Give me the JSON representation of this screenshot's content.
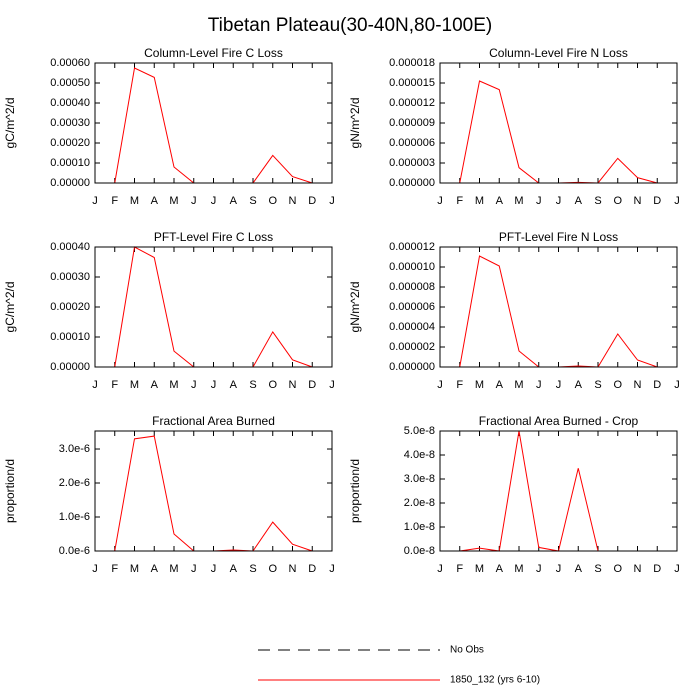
{
  "title": "Tibetan Plateau(30-40N,80-100E)",
  "legend": [
    {
      "name": "No Obs",
      "color": "#000000",
      "dash": true
    },
    {
      "name": "1850_132 (yrs 6-10)",
      "color": "#ff0000",
      "dash": false
    }
  ],
  "chart_data": [
    {
      "type": "line",
      "title": "Column-Level Fire C Loss",
      "y_label": "gC/m^2/d",
      "categories": [
        "J",
        "F",
        "M",
        "A",
        "M",
        "J",
        "J",
        "A",
        "S",
        "O",
        "N",
        "D",
        "J"
      ],
      "series": [
        {
          "color": "#ff0000",
          "values": [
            0,
            0,
            0.000575,
            0.000528,
            8e-05,
            0,
            0,
            0,
            0,
            0.000138,
            3.2e-05,
            0,
            null
          ]
        }
      ],
      "ylim": [
        0,
        0.0006
      ],
      "yticks": [
        {
          "value": 0,
          "label": "0.00000"
        },
        {
          "value": 0.0001,
          "label": "0.00010"
        },
        {
          "value": 0.0002,
          "label": "0.00020"
        },
        {
          "value": 0.0003,
          "label": "0.00030"
        },
        {
          "value": 0.0004,
          "label": "0.00040"
        },
        {
          "value": 0.0005,
          "label": "0.00050"
        },
        {
          "value": 0.0006,
          "label": "0.00060"
        }
      ]
    },
    {
      "type": "line",
      "title": "Column-Level Fire N Loss",
      "y_label": "gN/m^2/d",
      "categories": [
        "J",
        "F",
        "M",
        "A",
        "M",
        "J",
        "J",
        "A",
        "S",
        "O",
        "N",
        "D",
        "J"
      ],
      "series": [
        {
          "color": "#ff0000",
          "values": [
            0,
            0,
            1.53e-05,
            1.4e-05,
            2.3e-06,
            0,
            0,
            1e-07,
            0,
            3.7e-06,
            8e-07,
            0,
            null
          ]
        }
      ],
      "ylim": [
        0,
        1.8e-05
      ],
      "yticks": [
        {
          "value": 0,
          "label": "0.000000"
        },
        {
          "value": 3e-06,
          "label": "0.000003"
        },
        {
          "value": 6e-06,
          "label": "0.000006"
        },
        {
          "value": 9e-06,
          "label": "0.000009"
        },
        {
          "value": 1.2e-05,
          "label": "0.000012"
        },
        {
          "value": 1.5e-05,
          "label": "0.000015"
        },
        {
          "value": 1.8e-05,
          "label": "0.000018"
        }
      ]
    },
    {
      "type": "line",
      "title": "PFT-Level Fire C Loss",
      "y_label": "gC/m^2/d",
      "categories": [
        "J",
        "F",
        "M",
        "A",
        "M",
        "J",
        "J",
        "A",
        "S",
        "O",
        "N",
        "D",
        "J"
      ],
      "series": [
        {
          "color": "#ff0000",
          "values": [
            0,
            0,
            0.0004,
            0.000365,
            5.3e-05,
            0,
            0,
            0,
            0,
            0.000117,
            2.4e-05,
            0,
            null
          ]
        }
      ],
      "ylim": [
        0,
        0.0004
      ],
      "yticks": [
        {
          "value": 0,
          "label": "0.00000"
        },
        {
          "value": 0.0001,
          "label": "0.00010"
        },
        {
          "value": 0.0002,
          "label": "0.00020"
        },
        {
          "value": 0.0003,
          "label": "0.00030"
        },
        {
          "value": 0.0004,
          "label": "0.00040"
        }
      ]
    },
    {
      "type": "line",
      "title": "PFT-Level Fire N Loss",
      "y_label": "gN/m^2/d",
      "categories": [
        "J",
        "F",
        "M",
        "A",
        "M",
        "J",
        "J",
        "A",
        "S",
        "O",
        "N",
        "D",
        "J"
      ],
      "series": [
        {
          "color": "#ff0000",
          "values": [
            0,
            0,
            1.11e-05,
            1.01e-05,
            1.6e-06,
            0,
            0,
            1e-07,
            0,
            3.3e-06,
            7e-07,
            0,
            null
          ]
        }
      ],
      "ylim": [
        0,
        1.2e-05
      ],
      "yticks": [
        {
          "value": 0,
          "label": "0.000000"
        },
        {
          "value": 2e-06,
          "label": "0.000002"
        },
        {
          "value": 4e-06,
          "label": "0.000004"
        },
        {
          "value": 6e-06,
          "label": "0.000006"
        },
        {
          "value": 8e-06,
          "label": "0.000008"
        },
        {
          "value": 1e-05,
          "label": "0.000010"
        },
        {
          "value": 1.2e-05,
          "label": "0.000012"
        }
      ]
    },
    {
      "type": "line",
      "title": "Fractional Area Burned",
      "y_label": "proportion/d",
      "categories": [
        "J",
        "F",
        "M",
        "A",
        "M",
        "J",
        "J",
        "A",
        "S",
        "O",
        "N",
        "D",
        "J"
      ],
      "series": [
        {
          "color": "#ff0000",
          "values": [
            0,
            0,
            3.3e-06,
            3.38e-06,
            5e-07,
            0,
            0,
            3e-08,
            0,
            8.5e-07,
            2e-07,
            0,
            null
          ]
        }
      ],
      "ylim": [
        0,
        3.53e-06
      ],
      "yticks": [
        {
          "value": 0,
          "label": "0.0e-6"
        },
        {
          "value": 1e-06,
          "label": "1.0e-6"
        },
        {
          "value": 2e-06,
          "label": "2.0e-6"
        },
        {
          "value": 3e-06,
          "label": "3.0e-6"
        }
      ]
    },
    {
      "type": "line",
      "title": "Fractional Area Burned - Crop",
      "y_label": "proportion/d",
      "categories": [
        "J",
        "F",
        "M",
        "A",
        "M",
        "J",
        "J",
        "A",
        "S",
        "O",
        "N",
        "D",
        "J"
      ],
      "series": [
        {
          "color": "#ff0000",
          "values": [
            0,
            0,
            1.2e-09,
            0,
            5e-08,
            1.5e-09,
            0,
            3.45e-08,
            0,
            0,
            0,
            0,
            null
          ]
        }
      ],
      "ylim": [
        0,
        5e-08
      ],
      "yticks": [
        {
          "value": 0,
          "label": "0.0e-8"
        },
        {
          "value": 1e-08,
          "label": "1.0e-8"
        },
        {
          "value": 2e-08,
          "label": "2.0e-8"
        },
        {
          "value": 3e-08,
          "label": "3.0e-8"
        },
        {
          "value": 4e-08,
          "label": "4.0e-8"
        },
        {
          "value": 5e-08,
          "label": "5.0e-8"
        }
      ]
    }
  ]
}
